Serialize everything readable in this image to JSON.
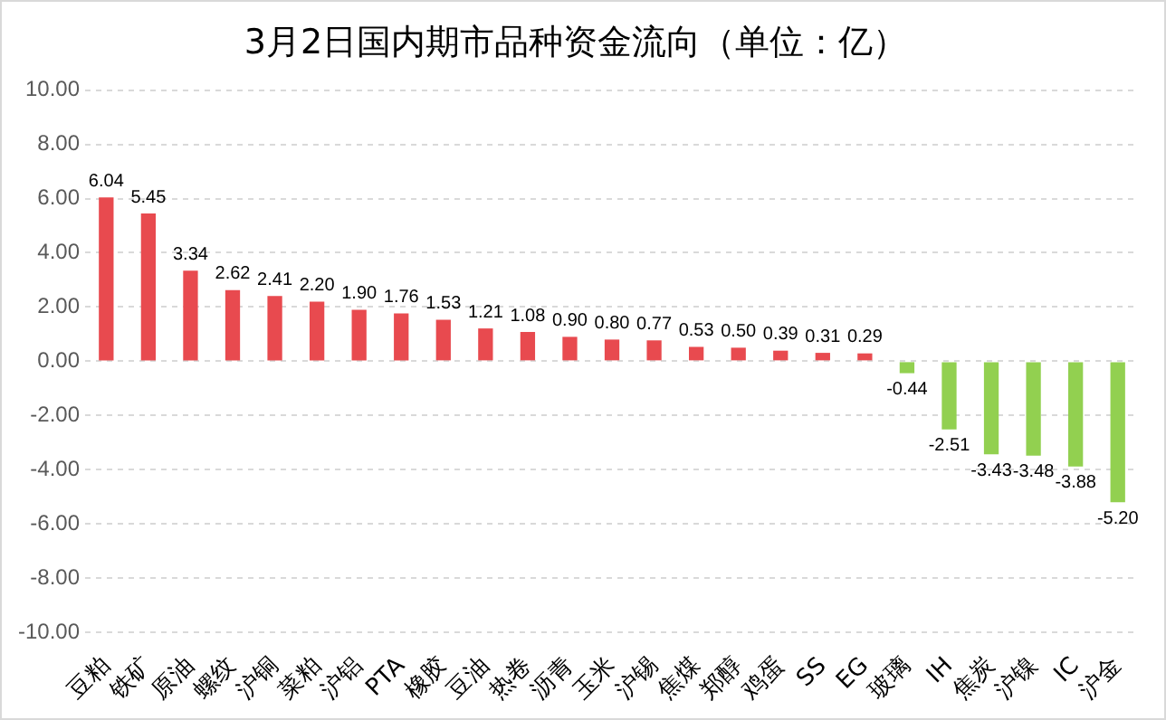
{
  "chart_data": {
    "type": "bar",
    "title": "3月2日国内期市品种资金流向（单位：亿）",
    "categories": [
      "豆粕",
      "铁矿",
      "原油",
      "螺纹",
      "沪铜",
      "菜粕",
      "沪铝",
      "PTA",
      "橡胶",
      "豆油",
      "热卷",
      "沥青",
      "玉米",
      "沪锡",
      "焦煤",
      "郑醇",
      "鸡蛋",
      "SS",
      "EG",
      "玻璃",
      "IH",
      "焦炭",
      "沪镍",
      "IC",
      "沪金"
    ],
    "values": [
      6.04,
      5.45,
      3.34,
      2.62,
      2.41,
      2.2,
      1.9,
      1.76,
      1.53,
      1.21,
      1.08,
      0.9,
      0.8,
      0.77,
      0.53,
      0.5,
      0.39,
      0.31,
      0.29,
      -0.44,
      -2.51,
      -3.43,
      -3.48,
      -3.88,
      -5.2
    ],
    "value_labels": [
      "6.04",
      "5.45",
      "3.34",
      "2.62",
      "2.41",
      "2.20",
      "1.90",
      "1.76",
      "1.53",
      "1.21",
      "1.08",
      "0.90",
      "0.80",
      "0.77",
      "0.53",
      "0.50",
      "0.39",
      "0.31",
      "0.29",
      "-0.44",
      "-2.51",
      "-3.43",
      "-3.48",
      "-3.88",
      "-5.20"
    ],
    "colors": [
      "#e84a4f",
      "#e84a4f",
      "#e84a4f",
      "#e84a4f",
      "#e84a4f",
      "#e84a4f",
      "#e84a4f",
      "#e84a4f",
      "#e84a4f",
      "#e84a4f",
      "#e84a4f",
      "#e84a4f",
      "#e84a4f",
      "#e84a4f",
      "#e84a4f",
      "#e84a4f",
      "#e84a4f",
      "#e84a4f",
      "#e84a4f",
      "#92d050",
      "#92d050",
      "#92d050",
      "#92d050",
      "#92d050",
      "#92d050"
    ],
    "ylim": [
      -10,
      10
    ],
    "yticks": [
      {
        "value": -10,
        "label": "-10.00"
      },
      {
        "value": -8,
        "label": "-8.00"
      },
      {
        "value": -6,
        "label": "-6.00"
      },
      {
        "value": -4,
        "label": "-4.00"
      },
      {
        "value": -2,
        "label": "-2.00"
      },
      {
        "value": 0,
        "label": "0.00"
      },
      {
        "value": 2,
        "label": "2.00"
      },
      {
        "value": 4,
        "label": "4.00"
      },
      {
        "value": 6,
        "label": "6.00"
      },
      {
        "value": 8,
        "label": "8.00"
      },
      {
        "value": 10,
        "label": "10.00"
      }
    ],
    "grid": "y",
    "legend": false
  }
}
